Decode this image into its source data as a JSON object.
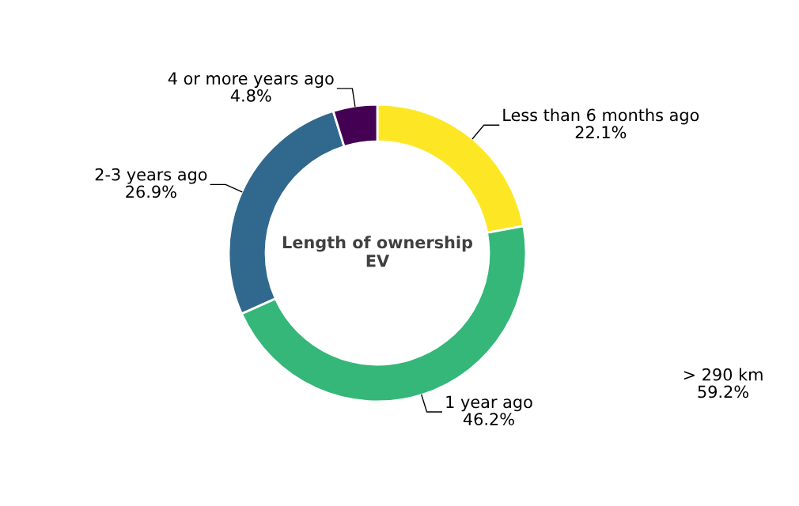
{
  "chart_data": {
    "type": "donut",
    "title": "Length of ownership\nEV",
    "categories": [
      "Less than 6 months ago",
      "1 year ago",
      "2-3 years ago",
      "4 or more years ago"
    ],
    "values": [
      22.1,
      46.2,
      26.9,
      4.8
    ],
    "colors": [
      "#fde725",
      "#35b779",
      "#31688e",
      "#440154"
    ],
    "value_labels": [
      "22.1%",
      "46.2%",
      "26.9%",
      "4.8%"
    ],
    "annotations": [
      "> 290 km\n59.2%"
    ],
    "legend": false
  }
}
